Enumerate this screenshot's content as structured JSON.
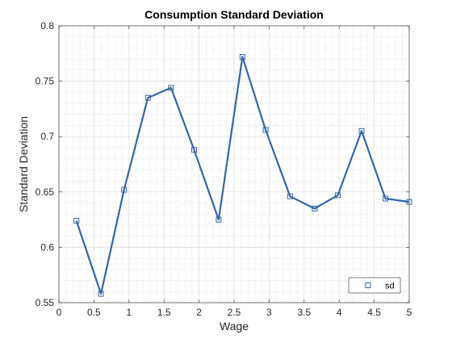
{
  "chart_data": {
    "type": "line",
    "title": "Consumption Standard Deviation",
    "xlabel": "Wage",
    "ylabel": "Standard Deviation",
    "xlim": [
      0,
      5
    ],
    "ylim": [
      0.55,
      0.8
    ],
    "xticks": [
      0,
      0.5,
      1,
      1.5,
      2,
      2.5,
      3,
      3.5,
      4,
      4.5,
      5
    ],
    "xtick_labels": [
      "0",
      "0.5",
      "1",
      "1.5",
      "2",
      "2.5",
      "3",
      "3.5",
      "4",
      "4.5",
      "5"
    ],
    "yticks": [
      0.55,
      0.6,
      0.65,
      0.7,
      0.75,
      0.8
    ],
    "ytick_labels": [
      "0.55",
      "0.6",
      "0.65",
      "0.7",
      "0.75",
      "0.8"
    ],
    "grid": true,
    "minor_grid": true,
    "legend_position": "bottom-right",
    "series": [
      {
        "name": "sd",
        "color": "#3465a8",
        "marker": "square",
        "x": [
          0.25,
          0.6,
          0.93,
          1.27,
          1.6,
          1.93,
          2.28,
          2.62,
          2.95,
          3.3,
          3.65,
          3.98,
          4.32,
          4.66,
          5.0
        ],
        "y": [
          0.624,
          0.558,
          0.652,
          0.735,
          0.744,
          0.688,
          0.625,
          0.772,
          0.706,
          0.646,
          0.635,
          0.647,
          0.705,
          0.644,
          0.641
        ]
      }
    ]
  }
}
